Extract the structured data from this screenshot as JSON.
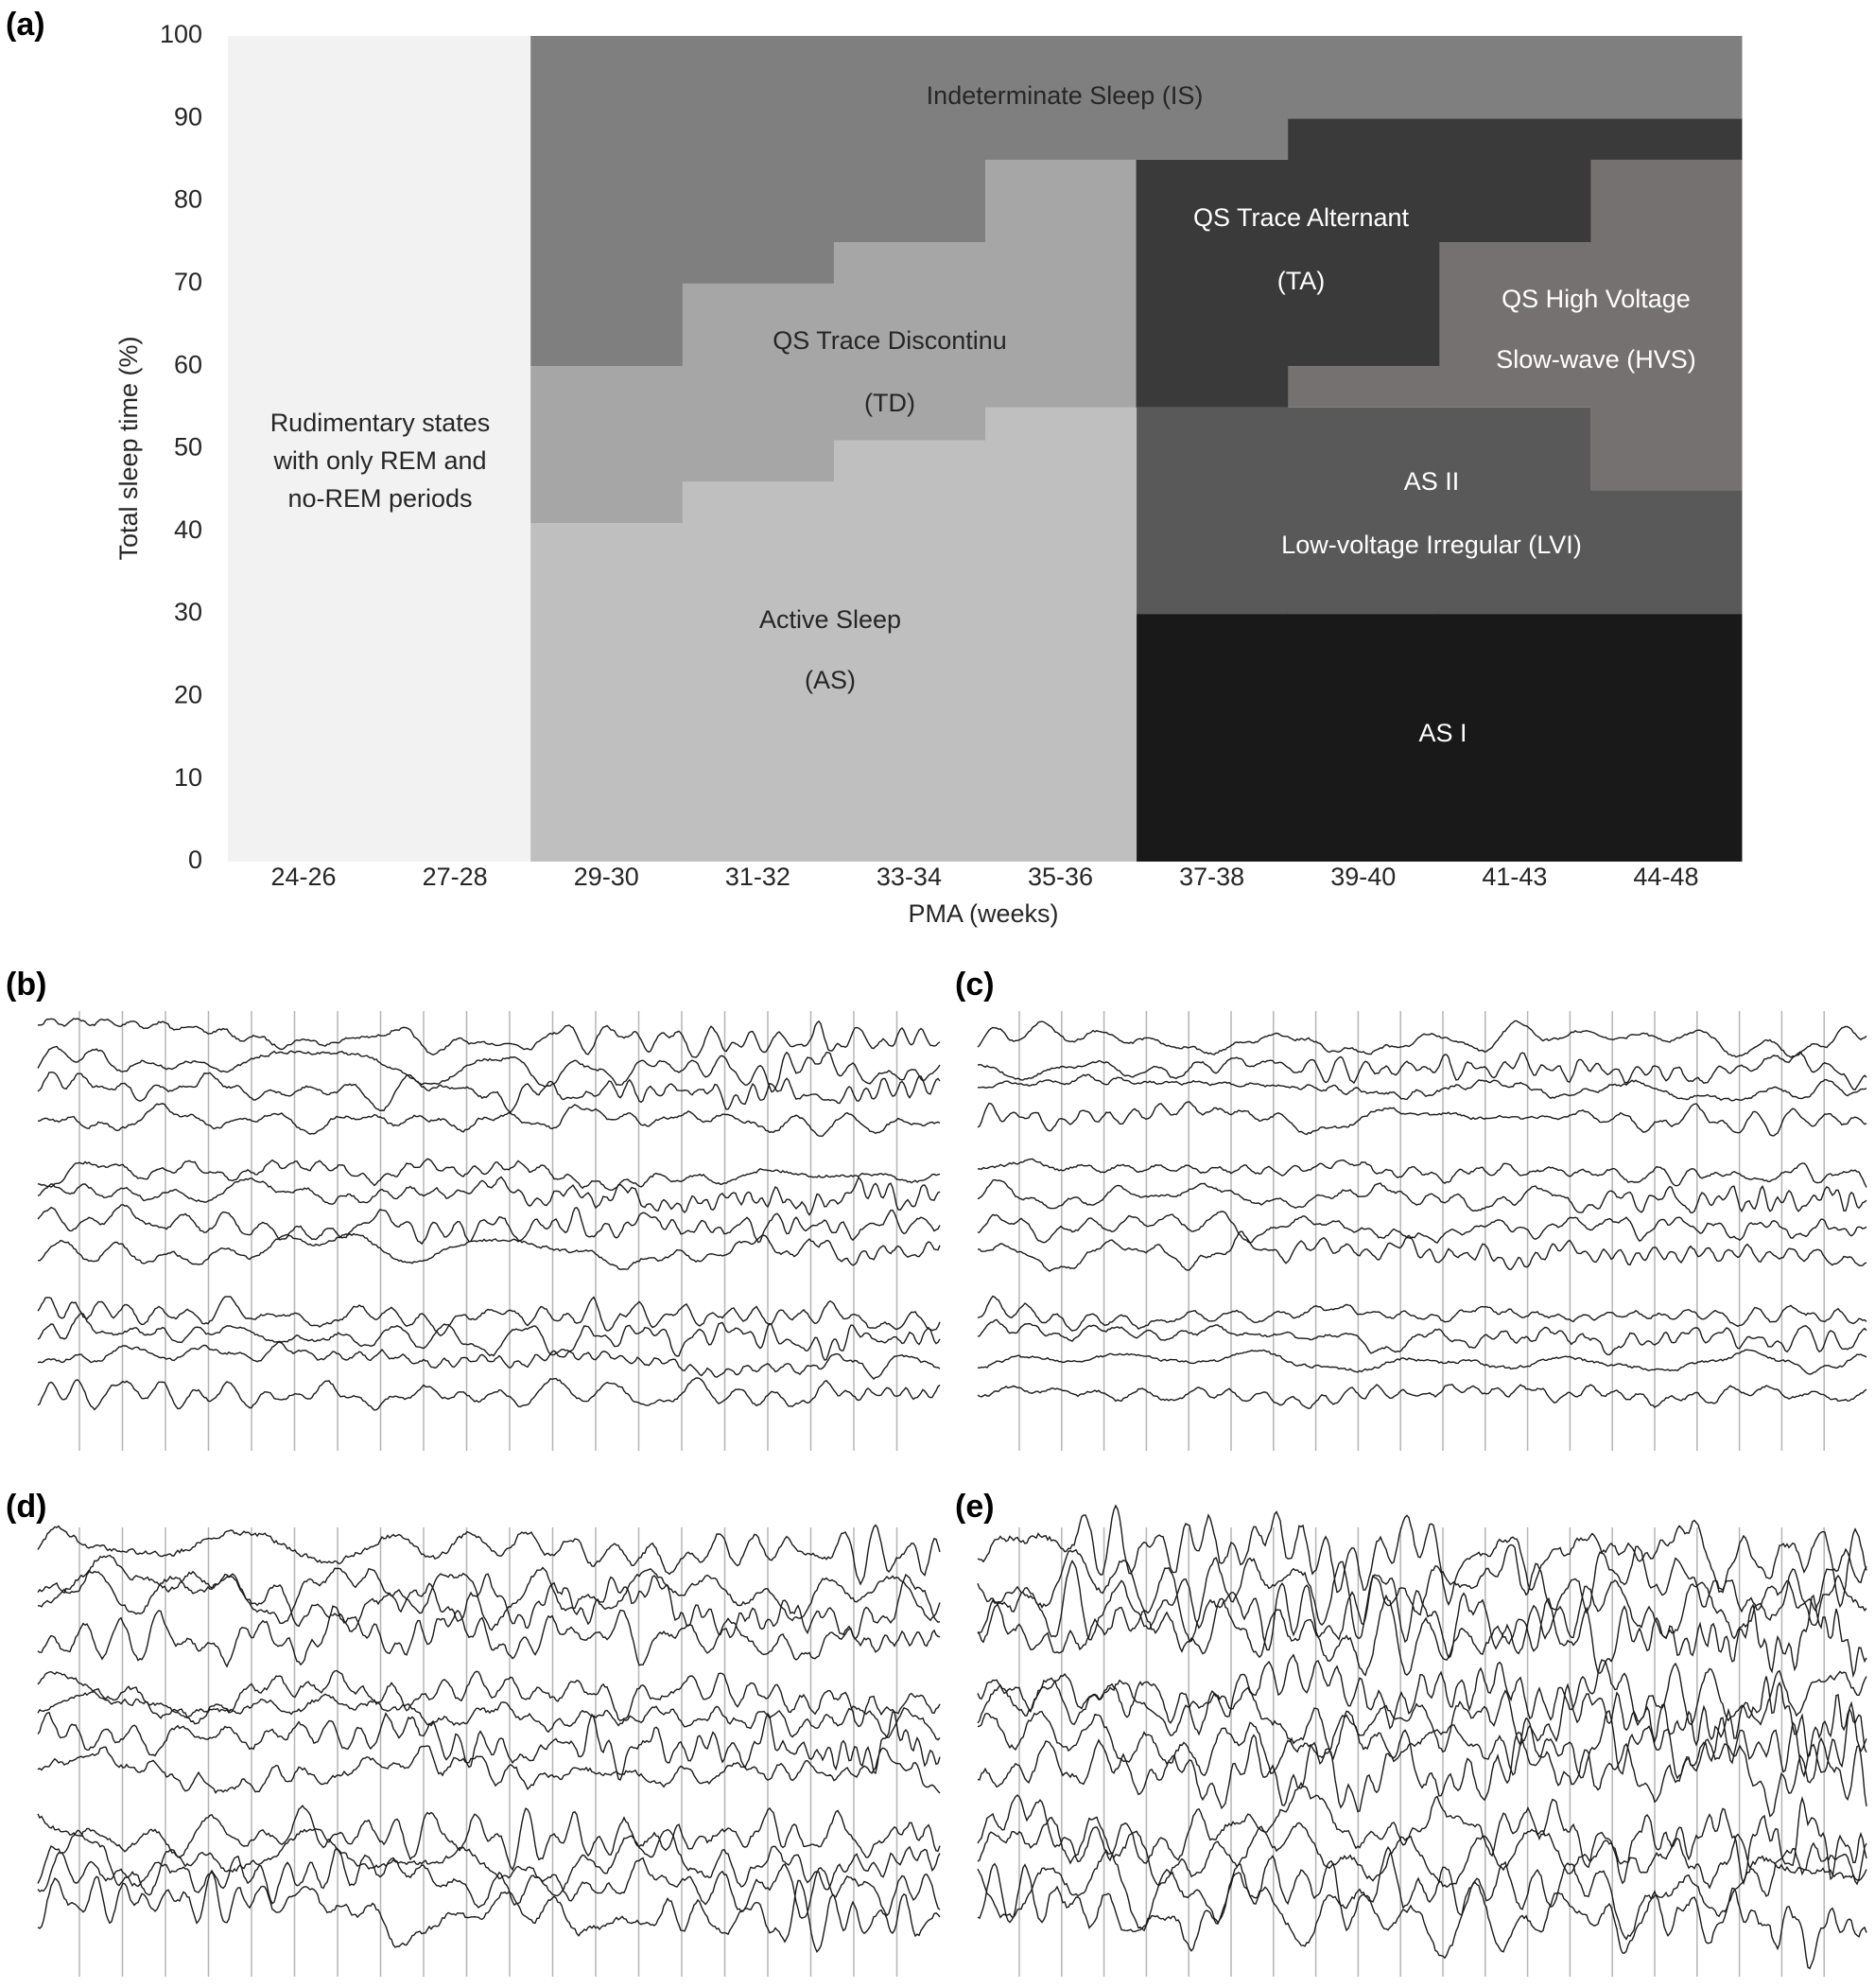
{
  "chart_data": {
    "type": "stacked-bar",
    "ylabel": "Total sleep time (%)",
    "xlabel": "PMA (weeks)",
    "categories": [
      "24-26",
      "27-28",
      "29-30",
      "31-32",
      "33-34",
      "35-36",
      "37-38",
      "39-40",
      "41-43",
      "44-48"
    ],
    "ylim": [
      0,
      100
    ],
    "yticks": [
      0,
      10,
      20,
      30,
      40,
      50,
      60,
      70,
      80,
      90,
      100
    ],
    "grid": false,
    "series": [
      {
        "label": [
          "Rudimentary states",
          "with only REM and",
          "no-REM periods"
        ],
        "color": "#f2f2f2",
        "values": [
          100,
          100,
          0,
          0,
          0,
          0,
          0,
          0,
          0,
          0
        ]
      },
      {
        "label": [
          "AS I"
        ],
        "color": "#191919",
        "values": [
          0,
          0,
          0,
          0,
          0,
          0,
          30,
          30,
          30,
          30
        ]
      },
      {
        "label": [
          "AS II",
          "Low-voltage Irregular (LVI)"
        ],
        "color": "#595959",
        "values": [
          0,
          0,
          0,
          0,
          0,
          0,
          25,
          25,
          25,
          15
        ]
      },
      {
        "label": [
          "Active Sleep",
          "(AS)"
        ],
        "color": "#bfbfbf",
        "values": [
          0,
          0,
          41,
          46,
          51,
          55,
          0,
          0,
          0,
          0
        ]
      },
      {
        "label": [
          "QS Trace Discontinu",
          "(TD)"
        ],
        "color": "#a6a6a6",
        "values": [
          0,
          0,
          19,
          24,
          24,
          30,
          0,
          0,
          0,
          0
        ]
      },
      {
        "label": [
          "QS High Voltage",
          "Slow-wave (HVS)"
        ],
        "color": "#767171",
        "values": [
          0,
          0,
          0,
          0,
          0,
          0,
          0,
          5,
          20,
          40
        ]
      },
      {
        "label": [
          "QS Trace Alternant",
          "(TA)"
        ],
        "color": "#3a3a3a",
        "values": [
          0,
          0,
          0,
          0,
          0,
          0,
          30,
          30,
          15,
          5
        ]
      },
      {
        "label": [
          "Indeterminate Sleep (IS)"
        ],
        "color": "#7f7f7f",
        "values": [
          0,
          0,
          40,
          30,
          25,
          15,
          15,
          10,
          10,
          10
        ]
      }
    ]
  },
  "panel_labels": [
    "(a)",
    "(b)",
    "(c)",
    "(d)",
    "(e)"
  ]
}
